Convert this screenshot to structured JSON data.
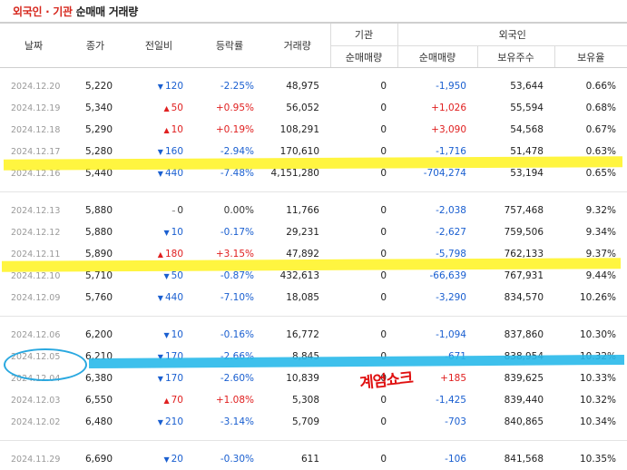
{
  "title": {
    "part1": "외국인 · 기관",
    "part2": "순매매 거래량"
  },
  "headers": {
    "date": "날짜",
    "close": "종가",
    "change": "전일비",
    "pct": "등락률",
    "volume": "거래량",
    "inst": "기관",
    "foreign": "외국인",
    "inst_net": "순매매량",
    "foreign_net": "순매매량",
    "holdings": "보유주수",
    "ratio": "보유율"
  },
  "annotation": "계엄쇼크",
  "colors": {
    "up": "#e02020",
    "down": "#1a5fd0",
    "highlight_yellow": "#fff200",
    "highlight_blue": "#29b9ea"
  },
  "rows": [
    {
      "date": "2024.12.20",
      "close": "5,220",
      "dir": "down",
      "chg": "120",
      "pct": "-2.25%",
      "vol": "48,975",
      "inst": "0",
      "fnet": "-1,950",
      "hold": "53,644",
      "ratio": "0.66%"
    },
    {
      "date": "2024.12.19",
      "close": "5,340",
      "dir": "up",
      "chg": "50",
      "pct": "+0.95%",
      "vol": "56,052",
      "inst": "0",
      "fnet": "+1,026",
      "hold": "55,594",
      "ratio": "0.68%"
    },
    {
      "date": "2024.12.18",
      "close": "5,290",
      "dir": "up",
      "chg": "10",
      "pct": "+0.19%",
      "vol": "108,291",
      "inst": "0",
      "fnet": "+3,090",
      "hold": "54,568",
      "ratio": "0.67%"
    },
    {
      "date": "2024.12.17",
      "close": "5,280",
      "dir": "down",
      "chg": "160",
      "pct": "-2.94%",
      "vol": "170,610",
      "inst": "0",
      "fnet": "-1,716",
      "hold": "51,478",
      "ratio": "0.63%"
    },
    {
      "date": "2024.12.16",
      "close": "5,440",
      "dir": "down",
      "chg": "440",
      "pct": "-7.48%",
      "vol": "4,151,280",
      "inst": "0",
      "fnet": "-704,274",
      "hold": "53,194",
      "ratio": "0.65%"
    },
    {
      "date": "2024.12.13",
      "close": "5,880",
      "dir": "flat",
      "chg": "0",
      "pct": "0.00%",
      "vol": "11,766",
      "inst": "0",
      "fnet": "-2,038",
      "hold": "757,468",
      "ratio": "9.32%"
    },
    {
      "date": "2024.12.12",
      "close": "5,880",
      "dir": "down",
      "chg": "10",
      "pct": "-0.17%",
      "vol": "29,231",
      "inst": "0",
      "fnet": "-2,627",
      "hold": "759,506",
      "ratio": "9.34%"
    },
    {
      "date": "2024.12.11",
      "close": "5,890",
      "dir": "up",
      "chg": "180",
      "pct": "+3.15%",
      "vol": "47,892",
      "inst": "0",
      "fnet": "-5,798",
      "hold": "762,133",
      "ratio": "9.37%"
    },
    {
      "date": "2024.12.10",
      "close": "5,710",
      "dir": "down",
      "chg": "50",
      "pct": "-0.87%",
      "vol": "432,613",
      "inst": "0",
      "fnet": "-66,639",
      "hold": "767,931",
      "ratio": "9.44%"
    },
    {
      "date": "2024.12.09",
      "close": "5,760",
      "dir": "down",
      "chg": "440",
      "pct": "-7.10%",
      "vol": "18,085",
      "inst": "0",
      "fnet": "-3,290",
      "hold": "834,570",
      "ratio": "10.26%"
    },
    {
      "date": "2024.12.06",
      "close": "6,200",
      "dir": "down",
      "chg": "10",
      "pct": "-0.16%",
      "vol": "16,772",
      "inst": "0",
      "fnet": "-1,094",
      "hold": "837,860",
      "ratio": "10.30%"
    },
    {
      "date": "2024.12.05",
      "close": "6,210",
      "dir": "down",
      "chg": "170",
      "pct": "-2.66%",
      "vol": "8,845",
      "inst": "0",
      "fnet": "-671",
      "hold": "838,954",
      "ratio": "10.32%"
    },
    {
      "date": "2024.12.04",
      "close": "6,380",
      "dir": "down",
      "chg": "170",
      "pct": "-2.60%",
      "vol": "10,839",
      "inst": "0",
      "fnet": "+185",
      "hold": "839,625",
      "ratio": "10.33%"
    },
    {
      "date": "2024.12.03",
      "close": "6,550",
      "dir": "up",
      "chg": "70",
      "pct": "+1.08%",
      "vol": "5,308",
      "inst": "0",
      "fnet": "-1,425",
      "hold": "839,440",
      "ratio": "10.32%"
    },
    {
      "date": "2024.12.02",
      "close": "6,480",
      "dir": "down",
      "chg": "210",
      "pct": "-3.14%",
      "vol": "5,709",
      "inst": "0",
      "fnet": "-703",
      "hold": "840,865",
      "ratio": "10.34%"
    },
    {
      "date": "2024.11.29",
      "close": "6,690",
      "dir": "down",
      "chg": "20",
      "pct": "-0.30%",
      "vol": "611",
      "inst": "0",
      "fnet": "-106",
      "hold": "841,568",
      "ratio": "10.35%"
    }
  ]
}
